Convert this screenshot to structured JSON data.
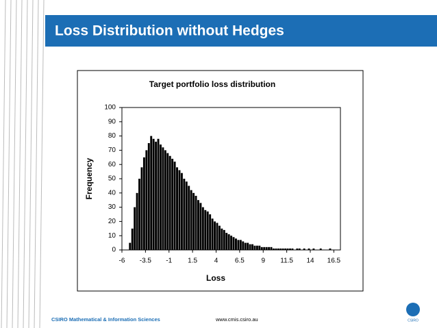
{
  "slide_title": "Loss Distribution without Hedges",
  "footer": {
    "organisation": "CSIRO Mathematical & Information Sciences",
    "url": "www.cmis.csiro.au",
    "logo_text": "CSIRO"
  },
  "chart_data": {
    "type": "histogram",
    "title": "Target portfolio loss distribution",
    "x_label": "Loss",
    "y_label": "Frequency",
    "color": "#000000",
    "grid": false,
    "bins": [
      -5.25,
      -5,
      -4.75,
      -4.5,
      -4.25,
      -4,
      -3.75,
      -3.5,
      -3.25,
      -3,
      -2.75,
      -2.5,
      -2.25,
      -2,
      -1.75,
      -1.5,
      -1.25,
      -1,
      -0.75,
      -0.5,
      -0.25,
      0,
      0.25,
      0.5,
      0.75,
      1,
      1.25,
      1.5,
      1.75,
      2,
      2.25,
      2.5,
      2.75,
      3,
      3.25,
      3.5,
      3.75,
      4,
      4.25,
      4.5,
      4.75,
      5,
      5.25,
      5.5,
      5.75,
      6,
      6.25,
      6.5,
      6.75,
      7,
      7.25,
      7.5,
      7.75,
      8,
      8.25,
      8.5,
      8.75,
      9,
      9.25,
      9.5,
      9.75,
      10,
      10.25,
      10.5,
      10.75,
      11,
      11.25,
      11.5,
      11.75,
      12,
      12.25,
      12.5,
      12.75,
      13,
      13.25,
      13.5,
      13.75,
      14,
      14.25,
      14.5,
      14.75,
      15,
      15.25,
      15.5,
      15.75,
      16,
      16.25,
      16.5
    ],
    "values": [
      5,
      15,
      30,
      40,
      50,
      58,
      65,
      70,
      75,
      80,
      78,
      76,
      78,
      74,
      72,
      70,
      68,
      66,
      64,
      62,
      58,
      56,
      54,
      50,
      48,
      45,
      42,
      40,
      38,
      35,
      33,
      30,
      28,
      27,
      25,
      22,
      20,
      19,
      17,
      15,
      14,
      12,
      11,
      10,
      9,
      8,
      7,
      7,
      6,
      5,
      5,
      4,
      4,
      3,
      3,
      3,
      2,
      2,
      2,
      2,
      2,
      1,
      1,
      1,
      1,
      1,
      1,
      1,
      1,
      1,
      0,
      1,
      1,
      0,
      1,
      0,
      1,
      0,
      1,
      0,
      0,
      1,
      0,
      0,
      0,
      1,
      0
    ],
    "xlim": [
      -6,
      17.2
    ],
    "xticks": [
      -6,
      -3.5,
      -1,
      1.5,
      4,
      6.5,
      9,
      11.5,
      14,
      16.5
    ],
    "ylim": [
      0,
      100
    ],
    "yticks": [
      0,
      10,
      20,
      30,
      40,
      50,
      60,
      70,
      80,
      90,
      100
    ]
  }
}
